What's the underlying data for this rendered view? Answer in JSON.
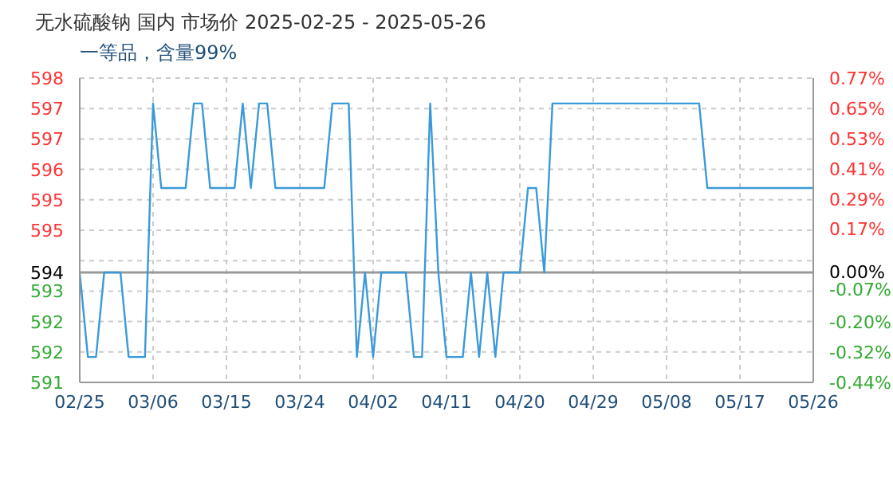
{
  "chart_data": {
    "type": "line",
    "title": "无水硫酸钠 国内 市场价 2025-02-25 - 2025-05-26",
    "subtitle": "一等品，含量99%",
    "x": [
      "2025-02-25",
      "2025-02-26",
      "2025-02-27",
      "2025-02-28",
      "2025-03-01",
      "2025-03-02",
      "2025-03-03",
      "2025-03-04",
      "2025-03-05",
      "2025-03-06",
      "2025-03-07",
      "2025-03-08",
      "2025-03-09",
      "2025-03-10",
      "2025-03-11",
      "2025-03-12",
      "2025-03-13",
      "2025-03-14",
      "2025-03-15",
      "2025-03-16",
      "2025-03-17",
      "2025-03-18",
      "2025-03-19",
      "2025-03-20",
      "2025-03-21",
      "2025-03-22",
      "2025-03-23",
      "2025-03-24",
      "2025-03-25",
      "2025-03-26",
      "2025-03-27",
      "2025-03-28",
      "2025-03-29",
      "2025-03-30",
      "2025-03-31",
      "2025-04-01",
      "2025-04-02",
      "2025-04-03",
      "2025-04-04",
      "2025-04-05",
      "2025-04-06",
      "2025-04-07",
      "2025-04-08",
      "2025-04-09",
      "2025-04-10",
      "2025-04-11",
      "2025-04-12",
      "2025-04-13",
      "2025-04-14",
      "2025-04-15",
      "2025-04-16",
      "2025-04-17",
      "2025-04-18",
      "2025-04-19",
      "2025-04-20",
      "2025-04-21",
      "2025-04-22",
      "2025-04-23",
      "2025-04-24",
      "2025-04-25",
      "2025-04-26",
      "2025-04-27",
      "2025-04-28",
      "2025-04-29",
      "2025-04-30",
      "2025-05-01",
      "2025-05-02",
      "2025-05-03",
      "2025-05-04",
      "2025-05-05",
      "2025-05-06",
      "2025-05-07",
      "2025-05-08",
      "2025-05-09",
      "2025-05-10",
      "2025-05-11",
      "2025-05-12",
      "2025-05-13",
      "2025-05-14",
      "2025-05-15",
      "2025-05-16",
      "2025-05-17",
      "2025-05-18",
      "2025-05-19",
      "2025-05-20",
      "2025-05-21",
      "2025-05-22",
      "2025-05-23",
      "2025-05-24",
      "2025-05-25",
      "2025-05-26"
    ],
    "series": [
      {
        "color": "#3a9ad9",
        "values": [
          593.6,
          591.6,
          591.6,
          593.6,
          593.6,
          593.6,
          591.6,
          591.6,
          591.6,
          597.6,
          595.6,
          595.6,
          595.6,
          595.6,
          597.6,
          597.6,
          595.6,
          595.6,
          595.6,
          595.6,
          597.6,
          595.6,
          597.6,
          597.6,
          595.6,
          595.6,
          595.6,
          595.6,
          595.6,
          595.6,
          595.6,
          597.6,
          597.6,
          597.6,
          591.6,
          593.6,
          591.6,
          593.6,
          593.6,
          593.6,
          593.6,
          591.6,
          591.6,
          597.6,
          593.6,
          591.6,
          591.6,
          591.6,
          593.6,
          591.6,
          593.6,
          591.6,
          593.6,
          593.6,
          593.6,
          595.6,
          595.6,
          593.6,
          597.6,
          597.6,
          597.6,
          597.6,
          597.6,
          597.6,
          597.6,
          597.6,
          597.6,
          597.6,
          597.6,
          597.6,
          597.6,
          597.6,
          597.6,
          597.6,
          597.6,
          597.6,
          597.6,
          595.6,
          595.6,
          595.6,
          595.6,
          595.6,
          595.6,
          595.6,
          595.6,
          595.6,
          595.6,
          595.6,
          595.6,
          595.6,
          595.6
        ]
      }
    ],
    "xlim": [
      "2025-02-25",
      "2025-05-26"
    ],
    "xticks": [
      {
        "value": "2025-02-25",
        "label": "02/25"
      },
      {
        "value": "2025-03-06",
        "label": "03/06"
      },
      {
        "value": "2025-03-15",
        "label": "03/15"
      },
      {
        "value": "2025-03-24",
        "label": "03/24"
      },
      {
        "value": "2025-04-02",
        "label": "04/02"
      },
      {
        "value": "2025-04-11",
        "label": "04/11"
      },
      {
        "value": "2025-04-20",
        "label": "04/20"
      },
      {
        "value": "2025-04-29",
        "label": "04/29"
      },
      {
        "value": "2025-05-08",
        "label": "05/08"
      },
      {
        "value": "2025-05-17",
        "label": "05/17"
      },
      {
        "value": "2025-05-26",
        "label": "05/26"
      }
    ],
    "ylim": [
      591,
      598.2
    ],
    "yticks": [
      {
        "value": 591,
        "label": "591"
      },
      {
        "value": 591.72,
        "label": "592"
      },
      {
        "value": 592.44,
        "label": "592"
      },
      {
        "value": 593.16,
        "label": "593"
      },
      {
        "value": 593.6,
        "label": "594"
      },
      {
        "value": 593.88,
        "label": null
      },
      {
        "value": 594.6,
        "label": "595"
      },
      {
        "value": 595.32,
        "label": "595"
      },
      {
        "value": 596.04,
        "label": "596"
      },
      {
        "value": 596.76,
        "label": "597"
      },
      {
        "value": 597.48,
        "label": "597"
      },
      {
        "value": 598.2,
        "label": "598"
      }
    ],
    "y2lim": [
      -0.44,
      0.77
    ],
    "y2ticks": [
      {
        "value": -0.44,
        "label": "-0.44%"
      },
      {
        "value": -0.32,
        "label": "-0.32%"
      },
      {
        "value": -0.2,
        "label": "-0.20%"
      },
      {
        "value": -0.07,
        "label": "-0.07%"
      },
      {
        "value": 0,
        "label": "0.00%"
      },
      {
        "value": 0.17,
        "label": "0.17%"
      },
      {
        "value": 0.29,
        "label": "0.29%"
      },
      {
        "value": 0.41,
        "label": "0.41%"
      },
      {
        "value": 0.53,
        "label": "0.53%"
      },
      {
        "value": 0.65,
        "label": "0.65%"
      },
      {
        "value": 0.77,
        "label": "0.77%"
      }
    ],
    "ref_lines": [
      {
        "axis": "y",
        "value": 593.6,
        "color": "#999999"
      }
    ],
    "grid": true,
    "line_style": "solid",
    "marker": "none"
  }
}
